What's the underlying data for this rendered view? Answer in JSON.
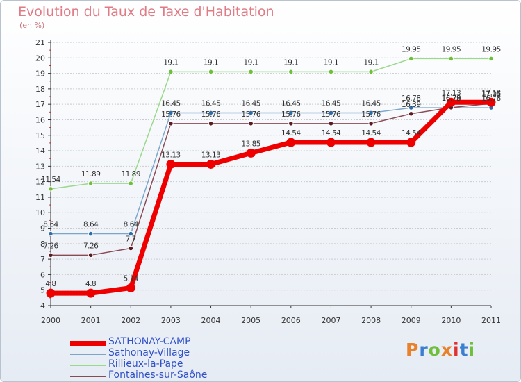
{
  "colors": {
    "title": "#e07a84",
    "axis": "#333333",
    "grid": "#cccccc",
    "label": "#333333"
  },
  "logo": {
    "text": "Proxiti",
    "letter_colors": [
      "#e8812a",
      "#3a7fd0",
      "#6fbf3c",
      "#e8812a",
      "#e03030",
      "#3a7fd0",
      "#6fbf3c"
    ]
  },
  "chart_data": {
    "type": "line",
    "title": "Evolution du Taux de Taxe d'Habitation",
    "ylabel": "(en %)",
    "xlabel": "",
    "x": [
      "2000",
      "2001",
      "2002",
      "2003",
      "2004",
      "2005",
      "2006",
      "2007",
      "2008",
      "2009",
      "2010",
      "2011"
    ],
    "ylim": [
      4,
      21
    ],
    "yticks": [
      "4",
      "5",
      "6",
      "7",
      "8",
      "9",
      "10",
      "11",
      "12",
      "13",
      "14",
      "15",
      "16",
      "17",
      "18",
      "19",
      "20",
      "21"
    ],
    "grid": "horizontal",
    "legend_position": "bottom-left",
    "series": [
      {
        "name": "SATHONAY-CAMP",
        "color": "#ee0000",
        "marker": "#ee0000",
        "emphasis": true,
        "values": [
          4.8,
          4.8,
          5.14,
          13.13,
          13.13,
          13.85,
          14.54,
          14.54,
          14.54,
          14.54,
          17.13,
          17.13
        ],
        "labels": [
          "4.8",
          "4.8",
          "5.14",
          "13.13",
          "13.13",
          "13.85",
          "14.54",
          "14.54",
          "14.54",
          "14.54",
          "17.13",
          "17.13"
        ]
      },
      {
        "name": "Sathonay-Village",
        "color": "#7aa6cc",
        "marker": "#2e6da8",
        "emphasis": false,
        "values": [
          8.64,
          8.64,
          8.64,
          16.45,
          16.45,
          16.45,
          16.45,
          16.45,
          16.45,
          16.78,
          16.78,
          16.78
        ],
        "labels": [
          "8.64",
          "8.64",
          "8.64",
          "16.45",
          "16.45",
          "16.45",
          "16.45",
          "16.45",
          "16.45",
          "16.78",
          "16.78",
          "16.78"
        ]
      },
      {
        "name": "Rillieux-la-Pape",
        "color": "#9ad88a",
        "marker": "#6fbf3c",
        "emphasis": false,
        "values": [
          11.54,
          11.89,
          11.89,
          19.1,
          19.1,
          19.1,
          19.1,
          19.1,
          19.1,
          19.95,
          19.95,
          19.95
        ],
        "labels": [
          "11.54",
          "11.89",
          "11.89",
          "19.1",
          "19.1",
          "19.1",
          "19.1",
          "19.1",
          "19.1",
          "19.95",
          "19.95",
          "19.95"
        ]
      },
      {
        "name": "Fontaines-sur-Saône",
        "color": "#8a4a55",
        "marker": "#5a1a22",
        "emphasis": false,
        "values": [
          7.26,
          7.26,
          7.7,
          15.76,
          15.76,
          15.76,
          15.76,
          15.76,
          15.76,
          16.39,
          16.79,
          17.05
        ],
        "labels": [
          "7.26",
          "7.26",
          "7.7",
          "15.76",
          "15.76",
          "15.76",
          "15.76",
          "15.76",
          "15.76",
          "16.39",
          "16.79",
          "17.05"
        ]
      }
    ]
  }
}
